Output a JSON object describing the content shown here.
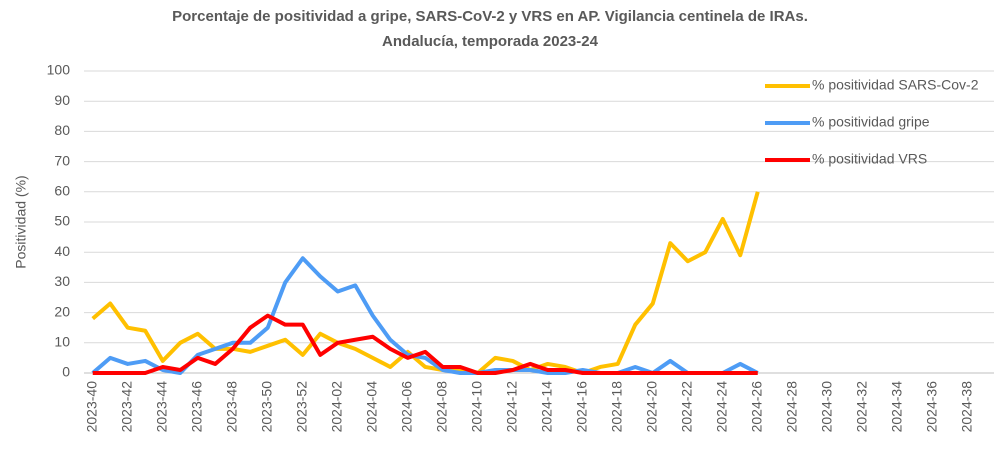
{
  "chart_data": {
    "type": "line",
    "title": [
      "Porcentaje de positividad  a gripe, SARS-CoV-2 y VRS en AP. Vigilancia centinela de IRAs.",
      "Andalucía, temporada 2023-24"
    ],
    "y_label": "Positividad (%)",
    "categories": [
      "2023-40",
      null,
      "2023-42",
      null,
      "2023-44",
      null,
      "2023-46",
      null,
      "2023-48",
      null,
      "2023-50",
      null,
      "2023-52",
      null,
      "2024-02",
      null,
      "2024-04",
      null,
      "2024-06",
      null,
      "2024-08",
      null,
      "2024-10",
      null,
      "2024-12",
      null,
      "2024-14",
      null,
      "2024-16",
      null,
      "2024-18",
      null,
      "2024-20",
      null,
      "2024-22",
      null,
      "2024-24",
      null,
      "2024-26",
      null,
      "2024-28",
      null,
      "2024-30",
      null,
      "2024-32",
      null,
      "2024-34",
      null,
      "2024-36",
      null,
      "2024-38",
      null
    ],
    "series": [
      {
        "name": "% positividad SARS-Cov-2",
        "color": "#ffc000",
        "values": [
          18,
          23,
          15,
          14,
          4,
          10,
          13,
          8,
          8,
          7,
          9,
          11,
          6,
          13,
          10,
          8,
          5,
          2,
          7,
          2,
          1,
          1,
          0,
          5,
          4,
          1,
          3,
          2,
          0,
          2,
          3,
          16,
          23,
          43,
          37,
          40,
          51,
          39,
          60,
          null,
          null,
          null,
          null,
          null,
          null,
          null,
          null,
          null,
          null,
          null,
          null,
          null
        ]
      },
      {
        "name": "% positividad gripe",
        "color": "#4e9cf5",
        "values": [
          0,
          5,
          3,
          4,
          1,
          0,
          6,
          8,
          10,
          10,
          15,
          30,
          38,
          32,
          27,
          29,
          19,
          11,
          6,
          5,
          1,
          0,
          0,
          1,
          1,
          1,
          0,
          0,
          1,
          0,
          0,
          2,
          0,
          4,
          0,
          0,
          0,
          3,
          0,
          null,
          null,
          null,
          null,
          null,
          null,
          null,
          null,
          null,
          null,
          null,
          null,
          null
        ]
      },
      {
        "name": "% positividad VRS",
        "color": "#ff0000",
        "values": [
          0,
          0,
          0,
          0,
          2,
          1,
          5,
          3,
          8,
          15,
          19,
          16,
          16,
          6,
          10,
          11,
          12,
          8,
          5,
          7,
          2,
          2,
          0,
          0,
          1,
          3,
          1,
          1,
          0,
          0,
          0,
          0,
          0,
          0,
          0,
          0,
          0,
          0,
          0,
          null,
          null,
          null,
          null,
          null,
          null,
          null,
          null,
          null,
          null,
          null,
          null,
          null
        ]
      }
    ],
    "ylim": [
      0,
      100
    ],
    "yticks": [
      0,
      10,
      20,
      30,
      40,
      50,
      60,
      70,
      80,
      90,
      100
    ],
    "grid": true
  }
}
